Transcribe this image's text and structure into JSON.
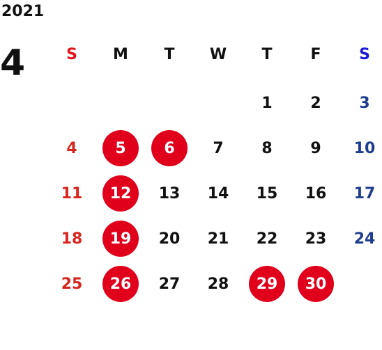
{
  "year": "2021",
  "month": "4",
  "weekdays": [
    "S",
    "M",
    "T",
    "W",
    "T",
    "F",
    "S"
  ],
  "weeks": [
    [
      null,
      null,
      null,
      null,
      "1",
      "2",
      "3"
    ],
    [
      "4",
      "5",
      "6",
      "7",
      "8",
      "9",
      "10"
    ],
    [
      "11",
      "12",
      "13",
      "14",
      "15",
      "16",
      "17"
    ],
    [
      "18",
      "19",
      "20",
      "21",
      "22",
      "23",
      "24"
    ],
    [
      "25",
      "26",
      "27",
      "28",
      "29",
      "30",
      null
    ]
  ],
  "highlighted_days": [
    "5",
    "6",
    "12",
    "19",
    "26",
    "29",
    "30"
  ],
  "colors": {
    "sunday": "#d7261e",
    "saturday": "#1e3d8f",
    "highlight": "#e0001b",
    "text": "#111111"
  }
}
